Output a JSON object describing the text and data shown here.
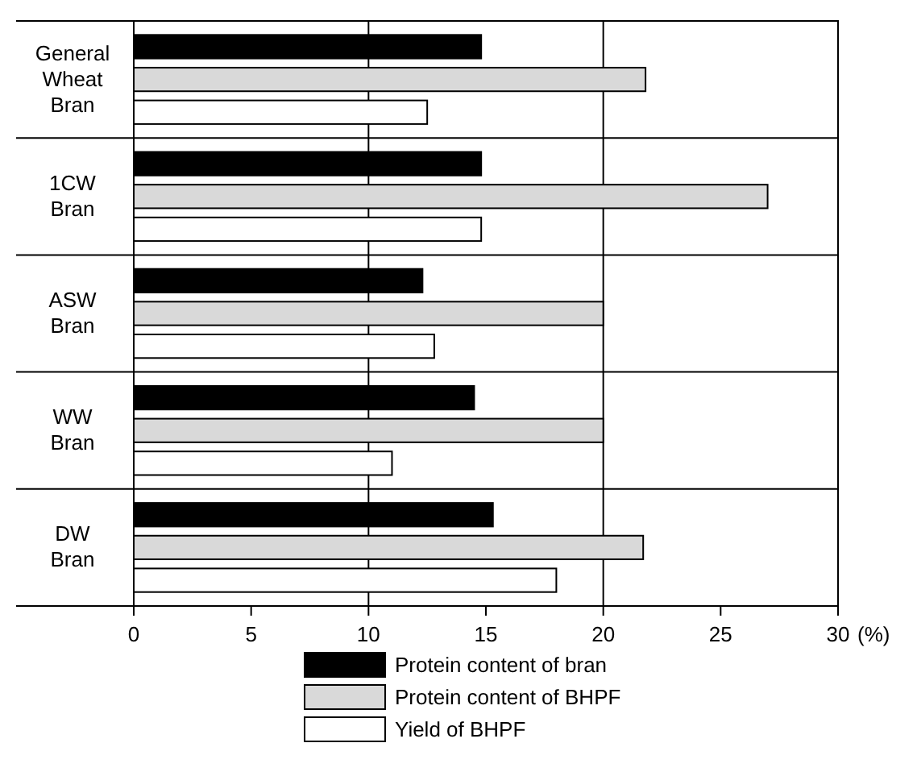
{
  "chart_data": {
    "type": "bar",
    "orientation": "horizontal",
    "categories": [
      "General\nWheat\nBran",
      "1CW\nBran",
      "ASW\nBran",
      "WW\nBran",
      "DW\nBran"
    ],
    "series": [
      {
        "name": "Protein content of bran",
        "color": "#000000",
        "values": [
          14.8,
          14.8,
          12.3,
          14.5,
          15.3
        ]
      },
      {
        "name": "Protein content of BHPF",
        "color": "#d9d9d9",
        "values": [
          21.8,
          27.0,
          20.0,
          20.0,
          21.7
        ]
      },
      {
        "name": "Yield of BHPF",
        "color": "#ffffff",
        "values": [
          12.5,
          14.8,
          12.8,
          11.0,
          18.0
        ]
      }
    ],
    "xlabel": "(%)",
    "xlim": [
      0,
      30
    ],
    "xticks": [
      0,
      5,
      10,
      15,
      20,
      25,
      30
    ],
    "ref_lines": [
      {
        "axis": "x",
        "value": 10,
        "color": "#000000"
      },
      {
        "axis": "x",
        "value": 20,
        "color": "#000000"
      }
    ],
    "legend": "bottom"
  }
}
